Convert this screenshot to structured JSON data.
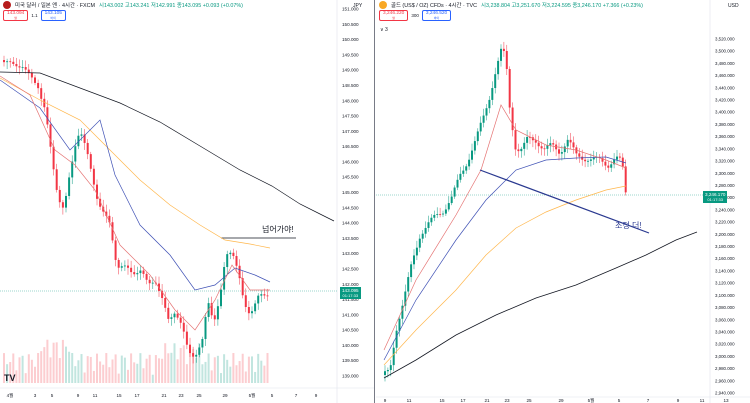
{
  "left_chart": {
    "symbol_text": "미국 달러 / 일본 엔 · 4시간 · FXCM",
    "ohlc_text": "시143.002 고143.241 저142.991 종143.095 +0.093 (+0.07%)",
    "sell_price": "143.094",
    "sell_label": "팔",
    "spread": "1.1",
    "buy_price": "143.105",
    "buy_label": "바이",
    "currency": "JPY",
    "current_price": "143.095",
    "countdown": "01:17:33",
    "annotation": "넘어가야!",
    "tv_logo": "TV",
    "y_ticks": [
      "151.000",
      "150.500",
      "150.000",
      "149.500",
      "149.000",
      "148.500",
      "148.000",
      "147.500",
      "147.000",
      "146.500",
      "146.000",
      "145.500",
      "145.000",
      "144.500",
      "144.000",
      "143.500",
      "143.000",
      "142.500",
      "142.000",
      "141.500",
      "141.000",
      "140.500",
      "140.000",
      "139.500",
      "139.000"
    ],
    "x_ticks": [
      "4월",
      "3",
      "5",
      "9",
      "11",
      "15",
      "17",
      "21",
      "23",
      "25",
      "29",
      "5월",
      "5",
      "7",
      "9"
    ],
    "colors": {
      "up": "#089981",
      "down": "#f23645",
      "ma_fast": "#e57373",
      "ma_mid": "#3f51b5",
      "ma_slow": "#ffb74d",
      "ma_long": "#131722"
    }
  },
  "right_chart": {
    "symbol_text": "골드 (US$ / OZ) CFDs · 4시간 · TVC",
    "ohlc_text": "시3,238.804 고3,251.670 저3,224.595 종3,246.170 +7.366 (+0.23%)",
    "sell_price": "3,246.220",
    "sell_label": "팔",
    "spread": "300",
    "buy_price": "3,246.520",
    "buy_label": "바이",
    "collapse_label": "∨ 3",
    "currency": "USD",
    "current_price": "3,246.170",
    "countdown": "01:17:33",
    "annotation": "조정 더!",
    "y_ticks": [
      "3,520.000",
      "3,500.000",
      "3,480.000",
      "3,460.000",
      "3,440.000",
      "3,420.000",
      "3,400.000",
      "3,380.000",
      "3,360.000",
      "3,340.000",
      "3,320.000",
      "3,300.000",
      "3,280.000",
      "3,260.000",
      "3,240.000",
      "3,220.000",
      "3,200.000",
      "3,180.000",
      "3,160.000",
      "3,140.000",
      "3,120.000",
      "3,100.000",
      "3,080.000",
      "3,060.000",
      "3,040.000",
      "3,020.000",
      "3,000.000",
      "2,980.000",
      "2,960.000",
      "2,940.000"
    ],
    "x_ticks": [
      "9",
      "11",
      "15",
      "17",
      "21",
      "23",
      "25",
      "29",
      "5월",
      "5",
      "7",
      "9",
      "11",
      "13"
    ],
    "colors": {
      "up": "#089981",
      "down": "#f23645",
      "ma_fast": "#e57373",
      "ma_mid": "#3f51b5",
      "ma_slow": "#ffb74d",
      "ma_long": "#131722",
      "trendline": "#2a3990"
    }
  }
}
